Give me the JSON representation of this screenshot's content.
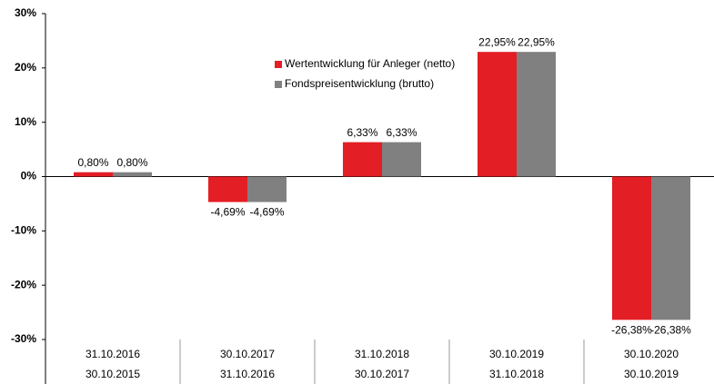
{
  "chart_data": {
    "type": "bar",
    "categories": [
      [
        "31.10.2016",
        "30.10.2015"
      ],
      [
        "30.10.2017",
        "31.10.2016"
      ],
      [
        "31.10.2018",
        "30.10.2017"
      ],
      [
        "30.10.2019",
        "31.10.2018"
      ],
      [
        "30.10.2020",
        "30.10.2019"
      ]
    ],
    "series": [
      {
        "name": "Wertentwicklung für Anleger (netto)",
        "color": "#e31e24",
        "values": [
          0.8,
          -4.69,
          6.33,
          22.95,
          -26.38
        ],
        "value_labels": [
          "0,80%",
          "-4,69%",
          "6,33%",
          "22,95%",
          "-26,38%"
        ]
      },
      {
        "name": "Fondspreisentwicklung (brutto)",
        "color": "#808080",
        "values": [
          0.8,
          -4.69,
          6.33,
          22.95,
          -26.38
        ],
        "value_labels": [
          "0,80%",
          "-4,69%",
          "6,33%",
          "22,95%",
          "-26,38%"
        ]
      }
    ],
    "ylim": [
      -30,
      30
    ],
    "yticks": [
      {
        "value": -30,
        "label": "-30%"
      },
      {
        "value": -20,
        "label": "-20%"
      },
      {
        "value": -10,
        "label": "-10%"
      },
      {
        "value": 0,
        "label": "0%"
      },
      {
        "value": 10,
        "label": "10%"
      },
      {
        "value": 20,
        "label": "20%"
      },
      {
        "value": 30,
        "label": "30%"
      }
    ]
  }
}
